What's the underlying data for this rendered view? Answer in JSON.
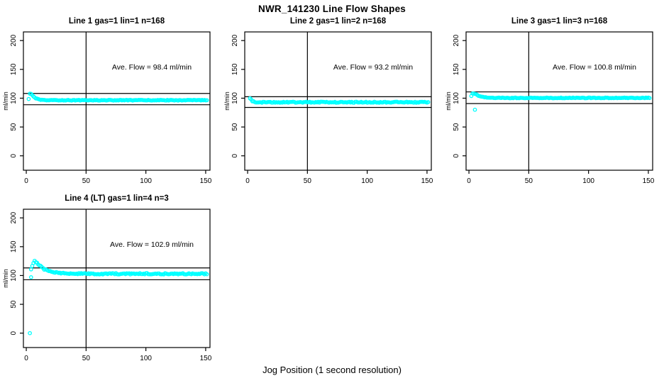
{
  "figure": {
    "title": "NWR_141230  Line Flow Shapes",
    "xlabel": "Jog Position (1 second resolution)",
    "background": "#ffffff",
    "frame_color": "#000000"
  },
  "chart_data": {
    "type": "scatter",
    "title": "NWR_141230  Line Flow Shapes",
    "xlabel": "Jog Position (1 second resolution)",
    "ylabel": "ml/min",
    "point_color": "#00FFFF",
    "line_color": "#000000",
    "x_ticks": [
      0,
      50,
      100,
      150
    ],
    "y_ticks": [
      0,
      50,
      100,
      150,
      200
    ],
    "xlim": [
      -2.4,
      153.6
    ],
    "ylim": [
      -25,
      215
    ],
    "vline_x": 50,
    "grid": false,
    "panels": [
      {
        "title": "Line 1 gas=1 lin=1 n=168",
        "annotation": "Ave. Flow =  98.4  ml/min",
        "ave_flow": 98.4,
        "n": 168,
        "hlines": [
          108.2,
          88.6
        ],
        "x_start": 2,
        "x_end": 151,
        "jitter": 0.55,
        "profile": [
          [
            2,
            98
          ],
          [
            3,
            108
          ],
          [
            4,
            107.5
          ],
          [
            5,
            105
          ],
          [
            6,
            103
          ],
          [
            8,
            100
          ],
          [
            10,
            98
          ],
          [
            12,
            97
          ],
          [
            15,
            96.5
          ],
          [
            151,
            96.5
          ]
        ],
        "extra_points": []
      },
      {
        "title": "Line 2 gas=1 lin=2 n=168",
        "annotation": "Ave. Flow =  93.2  ml/min",
        "ave_flow": 93.2,
        "n": 168,
        "hlines": [
          102.5,
          83.9
        ],
        "x_start": 2,
        "x_end": 151,
        "jitter": 0.9,
        "profile": [
          [
            2,
            100
          ],
          [
            3,
            98
          ],
          [
            4,
            95
          ],
          [
            5,
            94
          ],
          [
            7,
            93.2
          ],
          [
            10,
            93
          ],
          [
            151,
            93
          ]
        ],
        "extra_points": []
      },
      {
        "title": "Line 3 gas=1 lin=3 n=168",
        "annotation": "Ave. Flow =  100.8  ml/min",
        "ave_flow": 100.8,
        "n": 168,
        "hlines": [
          110.9,
          90.7
        ],
        "x_start": 2,
        "x_end": 151,
        "jitter": 0.6,
        "profile": [
          [
            2,
            104
          ],
          [
            3,
            108.5
          ],
          [
            4,
            108.5
          ],
          [
            5,
            107.5
          ],
          [
            6,
            106.5
          ],
          [
            8,
            104.5
          ],
          [
            10,
            103
          ],
          [
            13,
            101.5
          ],
          [
            16,
            100.8
          ],
          [
            20,
            100.5
          ],
          [
            151,
            100.5
          ]
        ],
        "extra_points": [
          [
            5,
            80
          ]
        ]
      },
      {
        "title": "Line 4 (LT) gas=1 lin=4 n=3",
        "annotation": "Ave. Flow =  102.9  ml/min",
        "ave_flow": 102.9,
        "n": 3,
        "hlines": [
          113.2,
          92.6
        ],
        "x_start": 4,
        "x_end": 151,
        "jitter": 1.1,
        "profile": [
          [
            4,
            110
          ],
          [
            5,
            117
          ],
          [
            6,
            122
          ],
          [
            7,
            125
          ],
          [
            8,
            124
          ],
          [
            9,
            122
          ],
          [
            10,
            120
          ],
          [
            12,
            116
          ],
          [
            14,
            112
          ],
          [
            16,
            110
          ],
          [
            18,
            108
          ],
          [
            20,
            107
          ],
          [
            23,
            105.5
          ],
          [
            26,
            104.5
          ],
          [
            30,
            104
          ],
          [
            40,
            103.5
          ],
          [
            60,
            103
          ],
          [
            151,
            103
          ]
        ],
        "extra_points": [
          [
            3,
            0
          ],
          [
            4,
            97
          ]
        ]
      }
    ]
  }
}
